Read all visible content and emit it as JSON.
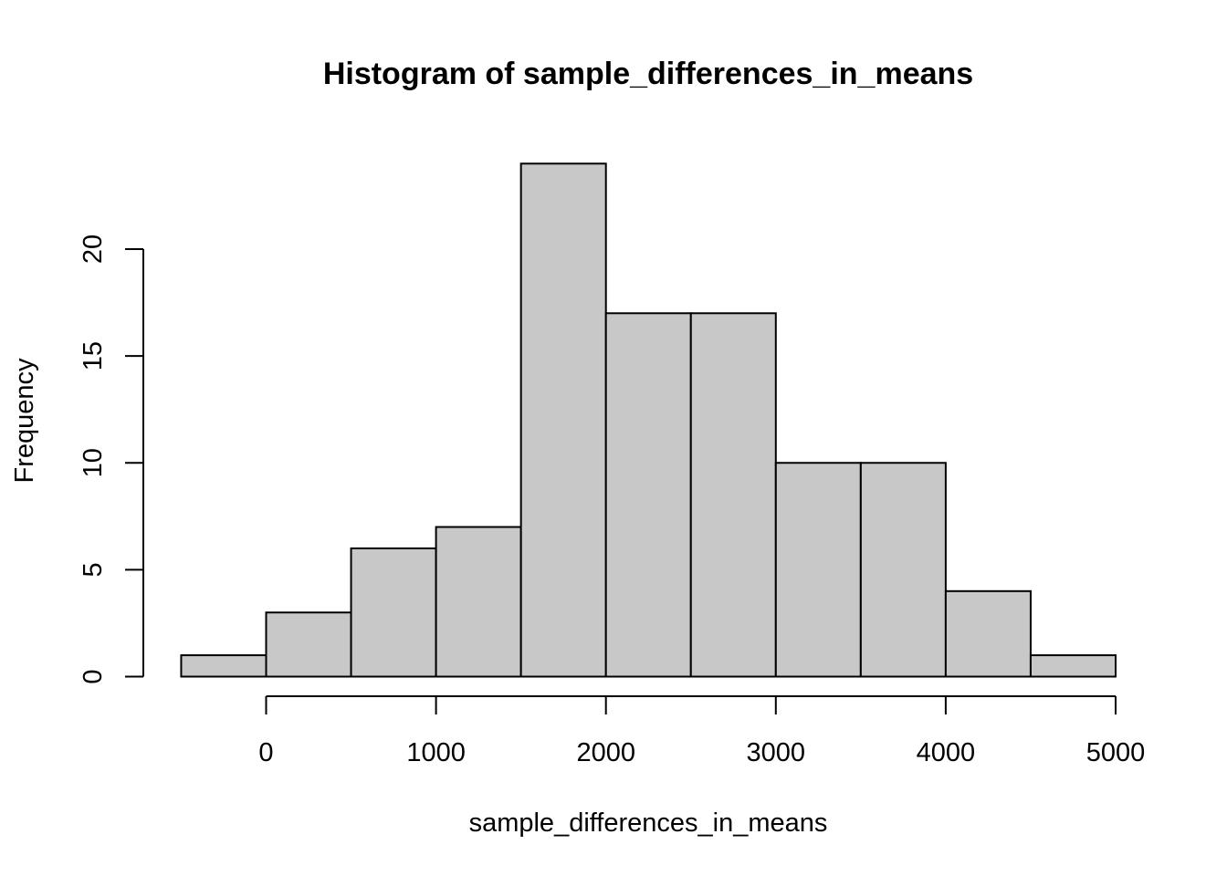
{
  "chart_data": {
    "type": "bar",
    "title": "Histogram of sample_differences_in_means",
    "xlabel": "sample_differences_in_means",
    "ylabel": "Frequency",
    "bins": [
      {
        "from": -500,
        "to": 0,
        "count": 1
      },
      {
        "from": 0,
        "to": 500,
        "count": 3
      },
      {
        "from": 500,
        "to": 1000,
        "count": 6
      },
      {
        "from": 1000,
        "to": 1500,
        "count": 7
      },
      {
        "from": 1500,
        "to": 2000,
        "count": 24
      },
      {
        "from": 2000,
        "to": 2500,
        "count": 17
      },
      {
        "from": 2500,
        "to": 3000,
        "count": 17
      },
      {
        "from": 3000,
        "to": 3500,
        "count": 10
      },
      {
        "from": 3500,
        "to": 4000,
        "count": 10
      },
      {
        "from": 4000,
        "to": 4500,
        "count": 4
      },
      {
        "from": 4500,
        "to": 5000,
        "count": 1
      }
    ],
    "xticks": [
      0,
      1000,
      2000,
      3000,
      4000,
      5000
    ],
    "yticks": [
      0,
      5,
      10,
      15,
      20
    ],
    "xlim": [
      -500,
      5000
    ],
    "ylim": [
      0,
      24
    ],
    "bar_color": "#c8c8c8",
    "grid": false,
    "legend": "none"
  }
}
